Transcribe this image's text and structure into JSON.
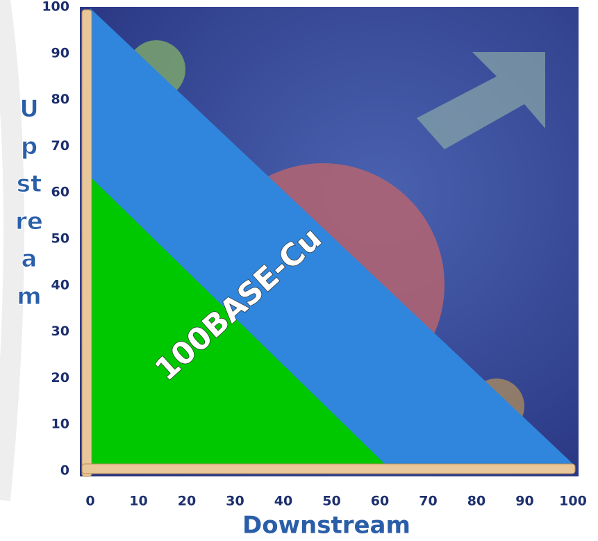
{
  "chart_data": {
    "type": "area",
    "x_label": "Downstream",
    "y_label": "Upstream",
    "annotation": "100BASE-Cu",
    "series": [
      {
        "color": "#2f86dc",
        "x": [
          0,
          100
        ],
        "values": [
          100,
          0
        ]
      },
      {
        "color": "#00c800",
        "x": [
          0,
          61
        ],
        "values": [
          63,
          0
        ]
      }
    ],
    "xlim": [
      0,
      100
    ],
    "xticks": [
      0,
      10,
      20,
      30,
      40,
      50,
      60,
      70,
      80,
      90,
      100
    ],
    "ylim": [
      0,
      100
    ],
    "yticks": [
      0,
      10,
      20,
      30,
      40,
      50,
      60,
      70,
      80,
      90,
      100
    ]
  }
}
